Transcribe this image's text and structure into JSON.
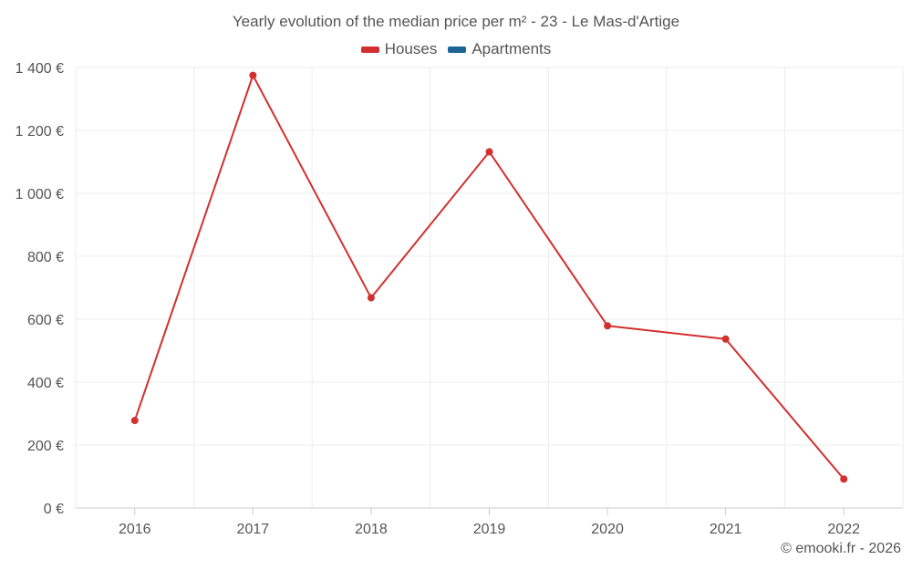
{
  "chart_data": {
    "type": "line",
    "title": "Yearly evolution of the median price per m² - 23 - Le Mas-d'Artige",
    "categories": [
      "2016",
      "2017",
      "2018",
      "2019",
      "2020",
      "2021",
      "2022"
    ],
    "series": [
      {
        "name": "Houses",
        "color": "#d32f2f",
        "values": [
          278,
          1375,
          668,
          1132,
          579,
          537,
          92
        ]
      },
      {
        "name": "Apartments",
        "color": "#1a6496",
        "values": [
          null,
          null,
          null,
          null,
          null,
          null,
          null
        ]
      }
    ],
    "ylim": [
      0,
      1400
    ],
    "yticks": [
      0,
      200,
      400,
      600,
      800,
      1000,
      1200,
      1400
    ],
    "ytick_labels": [
      "0 €",
      "200 €",
      "400 €",
      "600 €",
      "800 €",
      "1 000 €",
      "1 200 €",
      "1 400 €"
    ],
    "grid": true,
    "legend_position": "top-center"
  },
  "credit": "© emooki.fr - 2026"
}
